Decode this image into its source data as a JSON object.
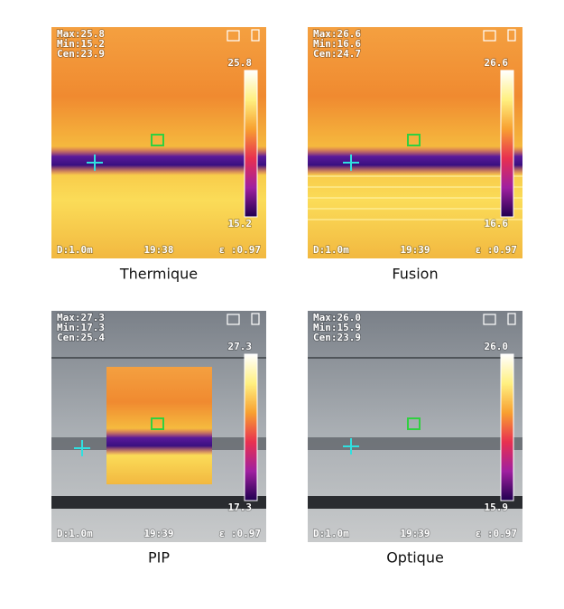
{
  "panels": [
    {
      "max": "Max:25.8",
      "min": "Min:15.2",
      "cen": "Cen:23.9",
      "scale_max": "25.8",
      "scale_min": "15.2",
      "distance": "D:1.0m",
      "time": "19:38",
      "emissivity": "ε :0.97",
      "caption": "Thermique"
    },
    {
      "max": "Max:26.6",
      "min": "Min:16.6",
      "cen": "Cen:24.7",
      "scale_max": "26.6",
      "scale_min": "16.6",
      "distance": "D:1.0m",
      "time": "19:39",
      "emissivity": "ε :0.97",
      "caption": "Fusion"
    },
    {
      "max": "Max:27.3",
      "min": "Min:17.3",
      "cen": "Cen:25.4",
      "scale_max": "27.3",
      "scale_min": "17.3",
      "distance": "D:1.0m",
      "time": "19:39",
      "emissivity": "ε :0.97",
      "caption": "PIP"
    },
    {
      "max": "Max:26.0",
      "min": "Min:15.9",
      "cen": "Cen:23.9",
      "scale_max": "26.0",
      "scale_min": "15.9",
      "distance": "D:1.0m",
      "time": "19:39",
      "emissivity": "ε :0.97",
      "caption": "Optique"
    }
  ]
}
